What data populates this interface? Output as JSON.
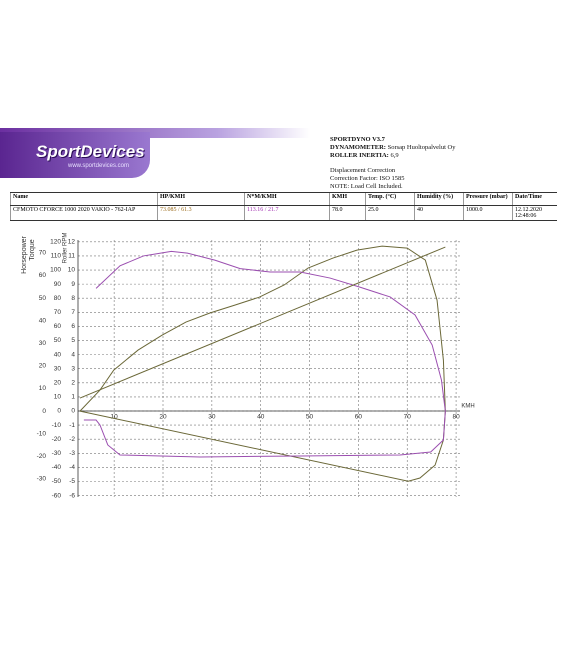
{
  "logo": {
    "name": "SportDevices",
    "url": "www.sportdevices.com"
  },
  "header": {
    "title": "SPORTDYNO V3.7",
    "lines": [
      {
        "key": "DYNAMOMETER:",
        "value": "Sorsap Huoltopalvelut Oy"
      },
      {
        "key": "ROLLER INERTIA:",
        "value": "6,9"
      }
    ],
    "notes": [
      "Displacement Correction",
      "Correction Factor: ISO 1585",
      "NOTE: Load Cell Included."
    ]
  },
  "table": {
    "columns": [
      "Name",
      "HP/KMH",
      "N*M/KMH",
      "KMH",
      "Temp. (°C)",
      "Humidity (%)",
      "Pressure (mbar)",
      "Date/Time"
    ],
    "rows": [
      [
        "CFMOTO CFORCE 1000 2020 VAKIO - 762-IAP",
        "73.085 / 61.3",
        "113.16 / 21.7",
        "78.0",
        "25.0",
        "40",
        "1000.0",
        "12.12.2020 12:48:06"
      ]
    ]
  },
  "chart_data": {
    "type": "line",
    "x_label": "KMH",
    "y_label": "Horsepower",
    "y2_label": "Torque",
    "y3_label": "Roller RPM",
    "xlim": [
      2.6,
      80.8
    ],
    "xticks": [
      10,
      20,
      30,
      40,
      50,
      60,
      70,
      80
    ],
    "ylim": [
      -38,
      75.7
    ],
    "yticks": [
      -30,
      -20,
      -10,
      0,
      10,
      20,
      30,
      40,
      50,
      60,
      70
    ],
    "y2lim": [
      -61,
      121.3
    ],
    "y2ticks": [
      -60,
      -50,
      -40,
      -30,
      -20,
      -10,
      0,
      10,
      20,
      30,
      40,
      50,
      60,
      70,
      80,
      90,
      100,
      110,
      120
    ],
    "y3lim": [
      -6.1,
      12.13
    ],
    "y3ticks": [
      -6,
      -5,
      -4,
      -3,
      -2,
      -1,
      0,
      1,
      2,
      3,
      4,
      5,
      6,
      7,
      8,
      9,
      10,
      11,
      12
    ],
    "grid": true,
    "series": [
      {
        "color": "#6b6838",
        "x": [
          3.0,
          7.1,
          9.9,
          14.9,
          19.8,
          24.7,
          29.6,
          34.7,
          39.7,
          44.8,
          49.7,
          54.8,
          59.7,
          64.9,
          70.0,
          73.7,
          76.1,
          77.4,
          77.8,
          77.4,
          75.7,
          72.6,
          70.2,
          3.0
        ],
        "values": [
          0,
          9.3,
          18.1,
          27.0,
          33.6,
          39.4,
          43.4,
          46.9,
          50.4,
          55.8,
          63.3,
          67.7,
          71.2,
          73.0,
          72.1,
          66.8,
          49.1,
          22.6,
          0,
          -12.8,
          -23.9,
          -29.6,
          -31.0,
          0
        ]
      },
      {
        "color": "#9b4fb0",
        "axis": "y2",
        "x": [
          6.3,
          11.2,
          16.0,
          21.7,
          25.0,
          30.6,
          35.8,
          41.9,
          48.1,
          54.2,
          60.3,
          66.5,
          71.6,
          75.1,
          77.0,
          77.8,
          77.4,
          74.8,
          68.5,
          48.1,
          27.6,
          11.2,
          8.7,
          7.1,
          6.3,
          3.8
        ],
        "values": [
          87,
          103,
          110,
          113.2,
          112,
          107,
          101,
          98.6,
          98.6,
          94.3,
          87.9,
          80.9,
          68.1,
          46.8,
          22,
          0,
          -20.6,
          -29.1,
          -31.2,
          -31.9,
          -32.6,
          -31.2,
          -24.1,
          -9.9,
          -6.4,
          -6.4
        ]
      },
      {
        "color": "#6b6838",
        "axis": "y3",
        "x": [
          3.0,
          77.8
        ],
        "values": [
          0.92,
          11.63
        ]
      }
    ]
  }
}
